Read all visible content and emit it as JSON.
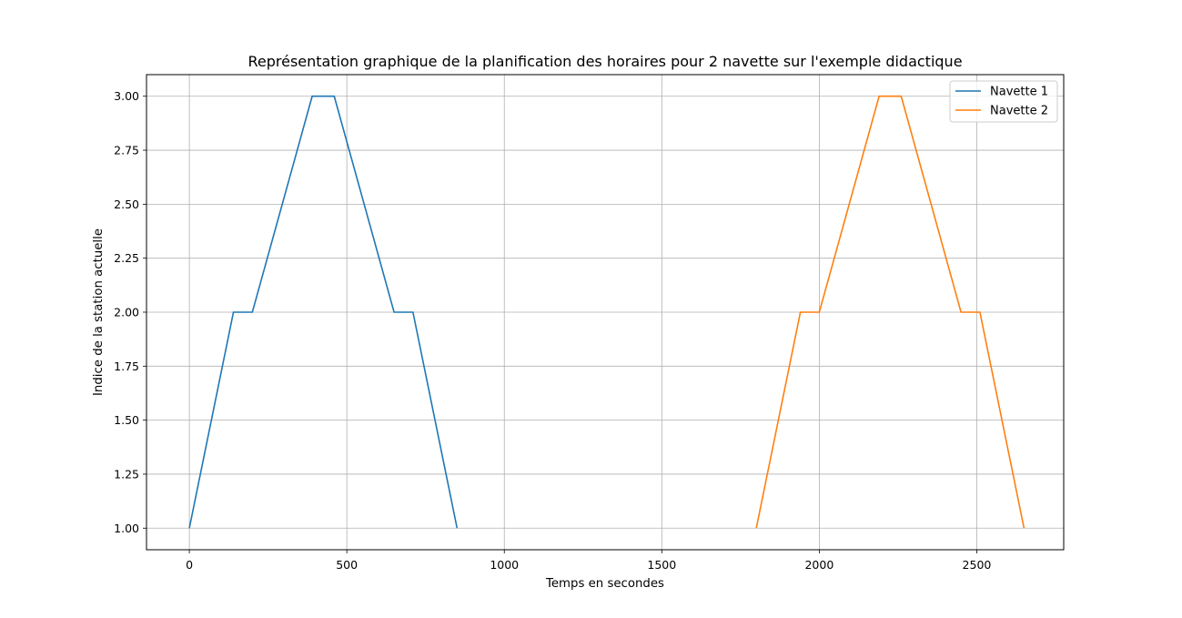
{
  "chart_data": {
    "type": "line",
    "title": "Représentation graphique de la planification des horaires pour 2 navette sur l'exemple didactique",
    "xlabel": "Temps en secondes",
    "ylabel": "Indice de la station actuelle",
    "xlim": [
      -136,
      2776
    ],
    "ylim": [
      0.9,
      3.1
    ],
    "xticks": [
      0,
      500,
      1000,
      1500,
      2000,
      2500
    ],
    "xtick_labels": [
      "0",
      "500",
      "1000",
      "1500",
      "2000",
      "2500"
    ],
    "yticks": [
      1.0,
      1.25,
      1.5,
      1.75,
      2.0,
      2.25,
      2.5,
      2.75,
      3.0
    ],
    "ytick_labels": [
      "1.00",
      "1.25",
      "1.50",
      "1.75",
      "2.00",
      "2.25",
      "2.50",
      "2.75",
      "3.00"
    ],
    "grid": true,
    "legend_position": "top-right",
    "series": [
      {
        "name": "Navette 1",
        "color": "#1f77b4",
        "x": [
          0,
          140,
          200,
          390,
          460,
          650,
          710,
          850
        ],
        "y": [
          1,
          2,
          2,
          3,
          3,
          2,
          2,
          1
        ]
      },
      {
        "name": "Navette 2",
        "color": "#ff7f0e",
        "x": [
          1800,
          1940,
          2000,
          2190,
          2260,
          2450,
          2510,
          2650
        ],
        "y": [
          1,
          2,
          2,
          3,
          3,
          2,
          2,
          1
        ]
      }
    ]
  }
}
